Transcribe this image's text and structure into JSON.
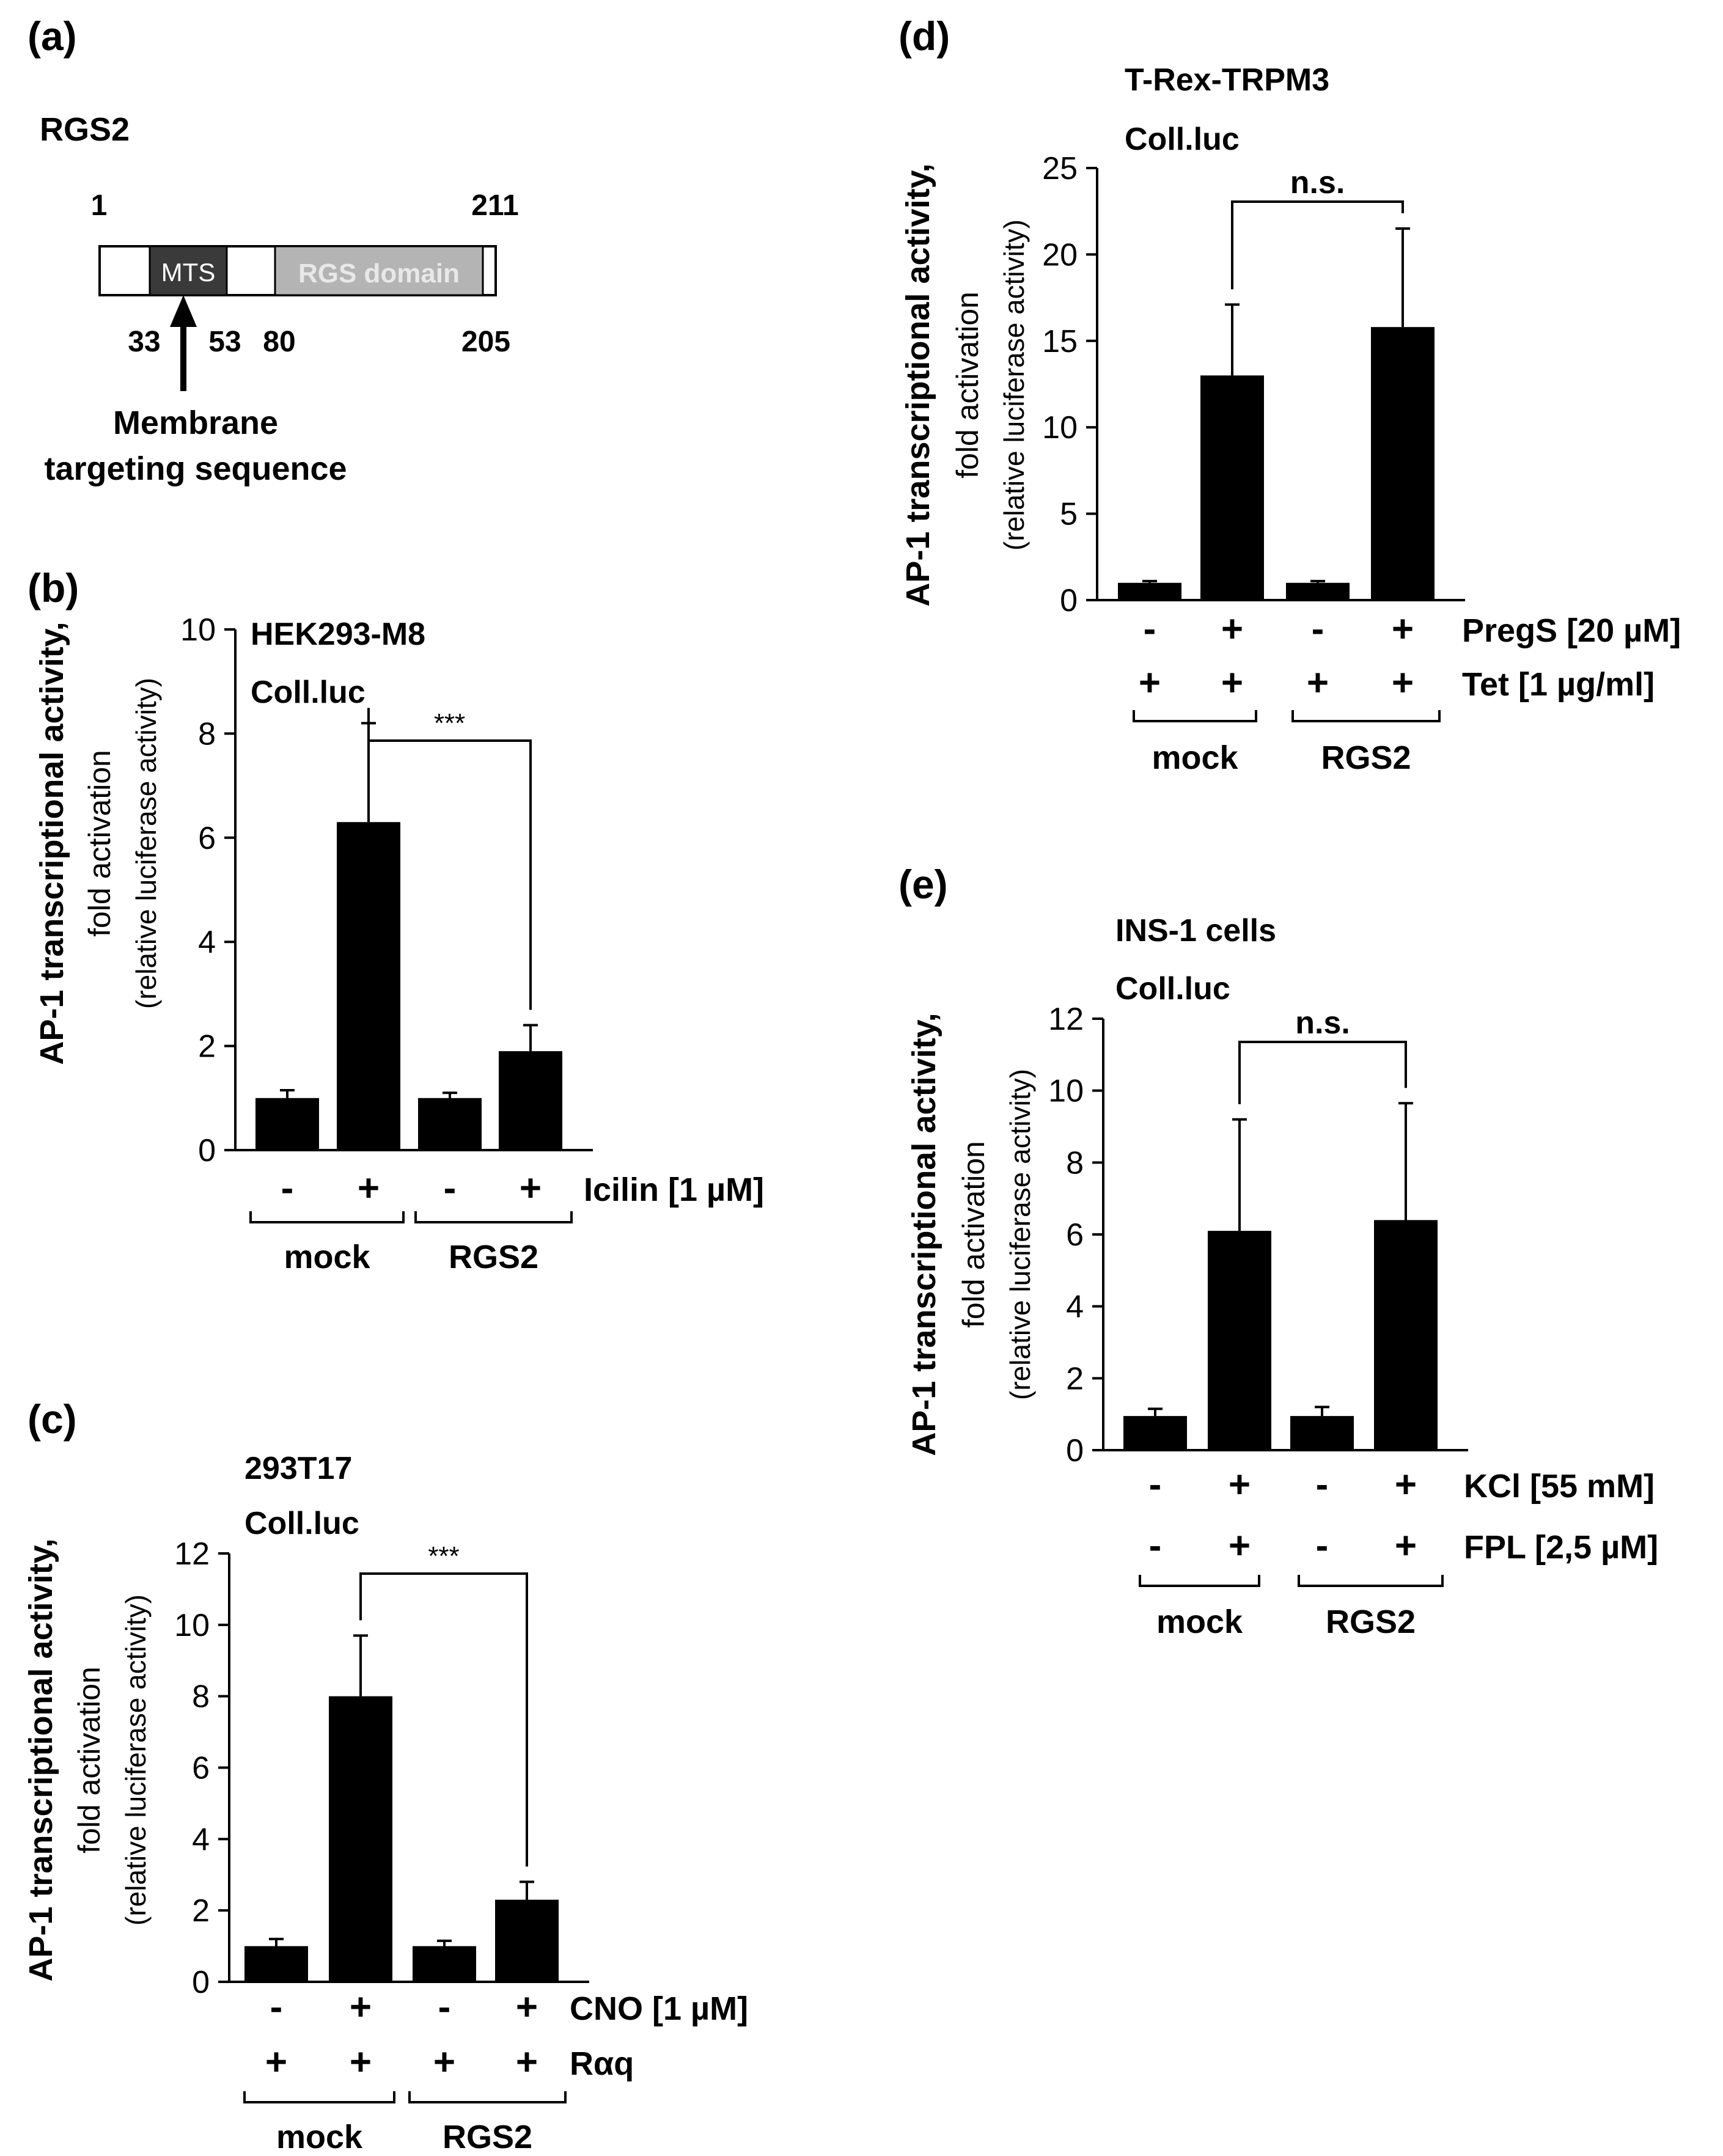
{
  "colors": {
    "bar": "#000000",
    "domain_mts": "#3a3a3a",
    "domain_rgs": "#b4b4b4",
    "domain_rgs_text": "#e8e8e8",
    "background": "#ffffff"
  },
  "panel_a": {
    "letter": "(a)",
    "protein": "RGS2",
    "start": "1",
    "end": "211",
    "mts_label": "MTS",
    "rgs_label": "RGS domain",
    "pos_33": "33",
    "pos_53": "53",
    "pos_80": "80",
    "pos_205": "205",
    "annotation_line1": "Membrane",
    "annotation_line2": "targeting sequence",
    "arrow_icon": "up-arrow-icon"
  },
  "ylabel": {
    "line1": "AP-1 transcriptional activity,",
    "line2": "fold activation",
    "line3": "(relative luciferase activity)"
  },
  "chart_data": [
    {
      "id": "b",
      "letter": "(b)",
      "type": "bar",
      "cells": "HEK293-M8",
      "reporter": "Coll.luc",
      "categories": [
        "mock -",
        "mock +",
        "RGS2 -",
        "RGS2 +"
      ],
      "values": [
        1.0,
        6.3,
        1.0,
        1.9
      ],
      "errors": [
        0.15,
        1.9,
        0.1,
        0.5
      ],
      "ylim": [
        0,
        10
      ],
      "yticks": [
        "0",
        "2",
        "4",
        "6",
        "8",
        "10"
      ],
      "significance": "***",
      "treatments": [
        {
          "label": "Icilin [1 µM]",
          "signs": [
            "-",
            "+",
            "-",
            "+"
          ]
        }
      ],
      "groups": [
        "mock",
        "RGS2"
      ]
    },
    {
      "id": "c",
      "letter": "(c)",
      "type": "bar",
      "cells": "293T17",
      "reporter": "Coll.luc",
      "categories": [
        "mock -",
        "mock +",
        "RGS2 -",
        "RGS2 +"
      ],
      "values": [
        1.0,
        8.0,
        1.0,
        2.3
      ],
      "errors": [
        0.2,
        1.7,
        0.15,
        0.5
      ],
      "ylim": [
        0,
        12
      ],
      "yticks": [
        "0",
        "2",
        "4",
        "6",
        "8",
        "10",
        "12"
      ],
      "significance": "***",
      "treatments": [
        {
          "label": "CNO [1 µM]",
          "signs": [
            "-",
            "+",
            "-",
            "+"
          ]
        },
        {
          "label": "Rαq",
          "signs": [
            "+",
            "+",
            "+",
            "+"
          ]
        }
      ],
      "groups": [
        "mock",
        "RGS2"
      ]
    },
    {
      "id": "d",
      "letter": "(d)",
      "type": "bar",
      "cells": "T-Rex-TRPM3",
      "reporter": "Coll.luc",
      "categories": [
        "mock -",
        "mock +",
        "RGS2 -",
        "RGS2 +"
      ],
      "values": [
        1.0,
        13.0,
        1.0,
        15.8
      ],
      "errors": [
        0.1,
        4.1,
        0.1,
        5.7
      ],
      "ylim": [
        0,
        25
      ],
      "yticks": [
        "0",
        "5",
        "10",
        "15",
        "20",
        "25"
      ],
      "significance": "n.s.",
      "treatments": [
        {
          "label": "PregS [20 µM]",
          "signs": [
            "-",
            "+",
            "-",
            "+"
          ]
        },
        {
          "label": "Tet [1 µg/ml]",
          "signs": [
            "+",
            "+",
            "+",
            "+"
          ]
        }
      ],
      "groups": [
        "mock",
        "RGS2"
      ]
    },
    {
      "id": "e",
      "letter": "(e)",
      "type": "bar",
      "cells": "INS-1 cells",
      "reporter": "Coll.luc",
      "categories": [
        "mock -",
        "mock +",
        "RGS2 -",
        "RGS2 +"
      ],
      "values": [
        0.95,
        6.1,
        0.95,
        6.4
      ],
      "errors": [
        0.2,
        3.1,
        0.25,
        3.25
      ],
      "ylim": [
        0,
        12
      ],
      "yticks": [
        "0",
        "2",
        "4",
        "6",
        "8",
        "10",
        "12"
      ],
      "significance": "n.s.",
      "treatments": [
        {
          "label": "KCl [55 mM]",
          "signs": [
            "-",
            "+",
            "-",
            "+"
          ]
        },
        {
          "label": "FPL [2,5 µM]",
          "signs": [
            "-",
            "+",
            "-",
            "+"
          ]
        }
      ],
      "groups": [
        "mock",
        "RGS2"
      ]
    }
  ]
}
